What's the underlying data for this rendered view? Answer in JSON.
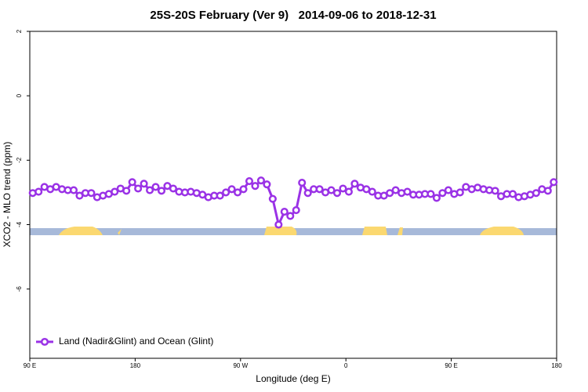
{
  "chart_data": {
    "type": "line",
    "title": "25S-20S February (Ver 9)   2014-09-06 to 2018-12-31",
    "x_label": "Longitude (deg E)",
    "y_label": "XCO2 - MLO trend (ppm)",
    "xlim": [
      90,
      540
    ],
    "ylim": [
      -8.15,
      2
    ],
    "xticks": [
      {
        "value": 90,
        "label": "90 E"
      },
      180,
      {
        "value": 270,
        "label": "90 W"
      },
      {
        "value": 360,
        "label": "0"
      },
      {
        "value": 450,
        "label": "90 E"
      },
      {
        "value": 540,
        "label": "180"
      }
    ],
    "yticks": [
      2,
      0,
      -2,
      -4,
      -6
    ],
    "legend": "bottom-left",
    "x": [
      92.5,
      97.5,
      102.5,
      107.5,
      112.5,
      117.5,
      122.5,
      127.5,
      132.5,
      137.5,
      142.5,
      147.5,
      152.5,
      157.5,
      162.5,
      167.5,
      172.5,
      177.5,
      182.5,
      187.5,
      192.5,
      197.5,
      202.5,
      207.5,
      212.5,
      217.5,
      222.5,
      227.5,
      232.5,
      237.5,
      242.5,
      247.5,
      252.5,
      257.5,
      262.5,
      267.5,
      272.5,
      277.5,
      282.5,
      287.5,
      292.5,
      297.5,
      302.5,
      307.5,
      312.5,
      317.5,
      322.5,
      327.5,
      332.5,
      337.5,
      342.5,
      347.5,
      352.5,
      357.5,
      362.5,
      367.5,
      372.5,
      377.5,
      382.5,
      387.5,
      392.5,
      397.5,
      402.5,
      407.5,
      412.5,
      417.5,
      422.5,
      427.5,
      432.5,
      437.5,
      442.5,
      447.5,
      452.5,
      457.5,
      462.5,
      467.5,
      472.5,
      477.5,
      482.5,
      487.5,
      492.5,
      497.5,
      502.5,
      507.5,
      512.5,
      517.5,
      522.5,
      527.5,
      532.5,
      537.5
    ],
    "series": [
      {
        "name": "Land (Nadir&Glint) and Ocean (Glint)",
        "color": "#9a32e6",
        "values": [
          -3.02,
          -2.98,
          -2.83,
          -2.9,
          -2.83,
          -2.9,
          -2.93,
          -2.93,
          -3.1,
          -3.02,
          -3.02,
          -3.15,
          -3.1,
          -3.05,
          -2.98,
          -2.88,
          -2.95,
          -2.68,
          -2.88,
          -2.73,
          -2.93,
          -2.83,
          -2.95,
          -2.8,
          -2.88,
          -2.98,
          -3.0,
          -2.98,
          -3.02,
          -3.07,
          -3.15,
          -3.1,
          -3.1,
          -3.0,
          -2.9,
          -3.0,
          -2.9,
          -2.65,
          -2.8,
          -2.63,
          -2.75,
          -3.2,
          -4.0,
          -3.6,
          -3.73,
          -3.55,
          -2.7,
          -3.02,
          -2.9,
          -2.9,
          -3.0,
          -2.93,
          -3.02,
          -2.88,
          -2.98,
          -2.73,
          -2.85,
          -2.9,
          -2.98,
          -3.1,
          -3.1,
          -3.02,
          -2.93,
          -3.02,
          -2.98,
          -3.07,
          -3.07,
          -3.05,
          -3.05,
          -3.17,
          -3.02,
          -2.93,
          -3.05,
          -3.0,
          -2.83,
          -2.9,
          -2.85,
          -2.9,
          -2.93,
          -2.95,
          -3.12,
          -3.05,
          -3.05,
          -3.15,
          -3.12,
          -3.07,
          -3.02,
          -2.9,
          -2.95,
          -2.68
        ]
      }
    ]
  }
}
